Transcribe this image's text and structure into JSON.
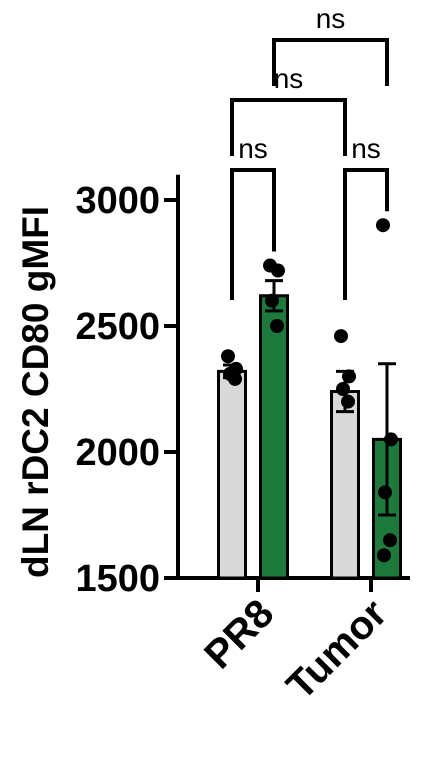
{
  "chart_data": {
    "type": "bar",
    "title": "",
    "xlabel": "",
    "ylabel": "dLN rDC2 CD80 gMFI",
    "ylim": [
      1500,
      3100
    ],
    "yticks": [
      1500,
      2000,
      2500,
      3000
    ],
    "categories": [
      "PR8",
      "Tumor"
    ],
    "series": [
      {
        "color": "#d9d9d9",
        "values": [
          2320,
          2240
        ],
        "errors": [
          25,
          80
        ],
        "points": [
          [
            2380,
            2330,
            2310,
            2290
          ],
          [
            2460,
            2300,
            2250,
            2200
          ]
        ]
      },
      {
        "color": "#1e7a3c",
        "values": [
          2620,
          2050
        ],
        "errors": [
          60,
          300
        ],
        "points": [
          [
            2740,
            2720,
            2600,
            2500
          ],
          [
            2900,
            2050,
            1840,
            1650,
            1590
          ]
        ]
      }
    ],
    "significance": [
      {
        "from": [
          0,
          0
        ],
        "to": [
          0,
          1
        ],
        "label": "ns",
        "level": 0
      },
      {
        "from": [
          1,
          0
        ],
        "to": [
          1,
          1
        ],
        "label": "ns",
        "level": 0
      },
      {
        "from": [
          0,
          0
        ],
        "to": [
          1,
          0
        ],
        "label": "ns",
        "level": 1
      },
      {
        "from": [
          0,
          1
        ],
        "to": [
          1,
          1
        ],
        "label": "ns",
        "level": 2
      }
    ],
    "grid": false,
    "legend": "none"
  }
}
